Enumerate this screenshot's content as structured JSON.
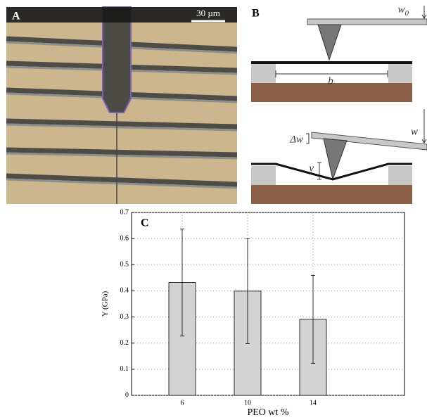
{
  "panel_a": {
    "label": "A",
    "scale_bar": "30 µm"
  },
  "panel_b": {
    "label": "B",
    "w0_symbol": "w",
    "w0_subscript": "0",
    "b_symbol": "b",
    "dw_symbol": "Δw",
    "w_symbol": "w",
    "v_symbol": "v"
  },
  "chart_data": {
    "type": "bar",
    "panel_label": "C",
    "xlabel": "PEO wt %",
    "ylabel": "Y (GPa)",
    "categories": [
      "6",
      "10",
      "14"
    ],
    "values": [
      0.432,
      0.399,
      0.291
    ],
    "errors": [
      0.205,
      0.201,
      0.168
    ],
    "color": "#d3d3d3",
    "ylim": [
      0,
      0.7
    ],
    "yticks": [
      0,
      0.1,
      0.2,
      0.3,
      0.4,
      0.5,
      0.6,
      0.7
    ],
    "grid": true
  }
}
